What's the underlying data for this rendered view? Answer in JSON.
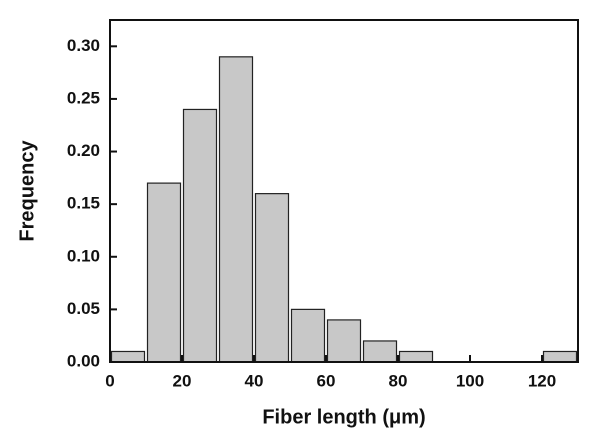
{
  "chart_data": {
    "type": "histogram",
    "x_label": "Fiber length (μm)",
    "y_label": "Frequency",
    "bins": [
      0,
      10,
      20,
      30,
      40,
      50,
      60,
      70,
      80,
      90,
      100,
      110,
      120,
      130
    ],
    "values": [
      0.01,
      0.17,
      0.24,
      0.29,
      0.16,
      0.05,
      0.04,
      0.02,
      0.01,
      0,
      0,
      0,
      0.01
    ],
    "color": "#c8c8c8",
    "xlim": [
      0,
      130
    ],
    "xticks": [
      0,
      20,
      40,
      60,
      80,
      100,
      120
    ],
    "ylim": [
      0,
      0.325
    ],
    "yticks": [
      {
        "value": 0,
        "label": "0.00"
      },
      {
        "value": 0.05,
        "label": "0.05"
      },
      {
        "value": 0.1,
        "label": "0.10"
      },
      {
        "value": 0.15,
        "label": "0.15"
      },
      {
        "value": 0.2,
        "label": "0.20"
      },
      {
        "value": 0.25,
        "label": "0.25"
      },
      {
        "value": 0.3,
        "label": "0.30"
      }
    ]
  }
}
